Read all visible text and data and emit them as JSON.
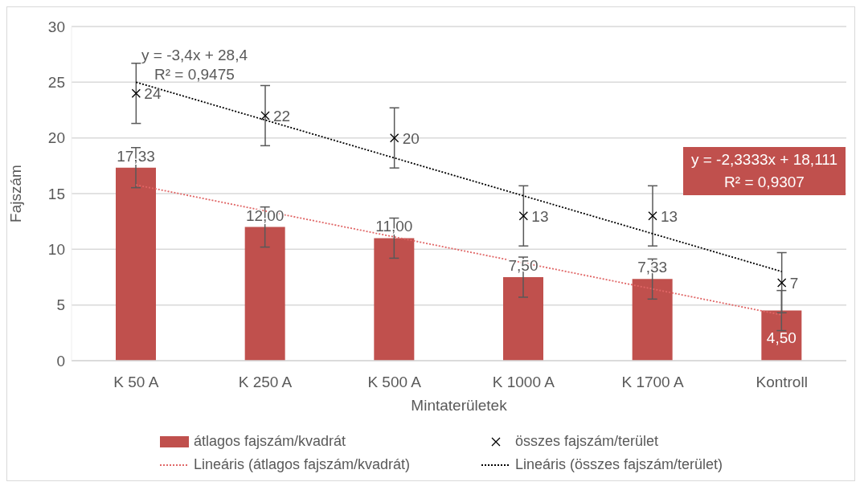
{
  "chart_data": {
    "type": "bar",
    "xlabel": "Mintaterületek",
    "ylabel": "Fajszám",
    "categories": [
      "K 50 A",
      "K 250 A",
      "K 500 A",
      "K 1000 A",
      "K 1700 A",
      "Kontroll"
    ],
    "series": [
      {
        "name": "átlagos fajszám/kvadrát",
        "color": "#c0504d",
        "values": [
          17.33,
          12,
          11,
          7.5,
          7.33,
          4.5
        ],
        "errors": [
          1.8,
          1.8,
          1.8,
          1.8,
          1.8,
          1.8
        ],
        "value_labels": [
          "17,33",
          "12,00",
          "11,00",
          "7,50",
          "7,33",
          "4,50"
        ]
      },
      {
        "name": "összes fajszám/terület",
        "type": "scatter",
        "color": "#000000",
        "marker": "cross",
        "values": [
          24,
          22,
          20,
          13,
          13,
          7
        ],
        "errors": [
          2.7,
          2.7,
          2.7,
          2.7,
          2.7,
          2.7
        ],
        "value_labels": [
          "24",
          "22",
          "20",
          "13",
          "13",
          "7"
        ]
      },
      {
        "name": "Lineáris (átlagos fajszám/kvadrát)",
        "type": "line",
        "color": "#e06666",
        "line_style": "dotted",
        "marker": "none",
        "values": [
          15.78,
          13.44,
          11.11,
          8.78,
          6.44,
          4.11
        ]
      },
      {
        "name": "Lineáris (összes fajszám/terület)",
        "type": "line",
        "color": "#000000",
        "line_style": "dotted",
        "marker": "none",
        "values": [
          25,
          21.6,
          18.2,
          14.8,
          11.4,
          8
        ]
      }
    ],
    "annotations": [
      "y = -3,4x + 28,4",
      "R² = 0,9475",
      "y = -2,3333x + 18,111",
      "R² = 0,9307"
    ],
    "ylim": [
      0,
      30
    ],
    "yticks": [
      0,
      5,
      10,
      15,
      20,
      25,
      30
    ],
    "grid": "y",
    "legend": "bottom"
  }
}
